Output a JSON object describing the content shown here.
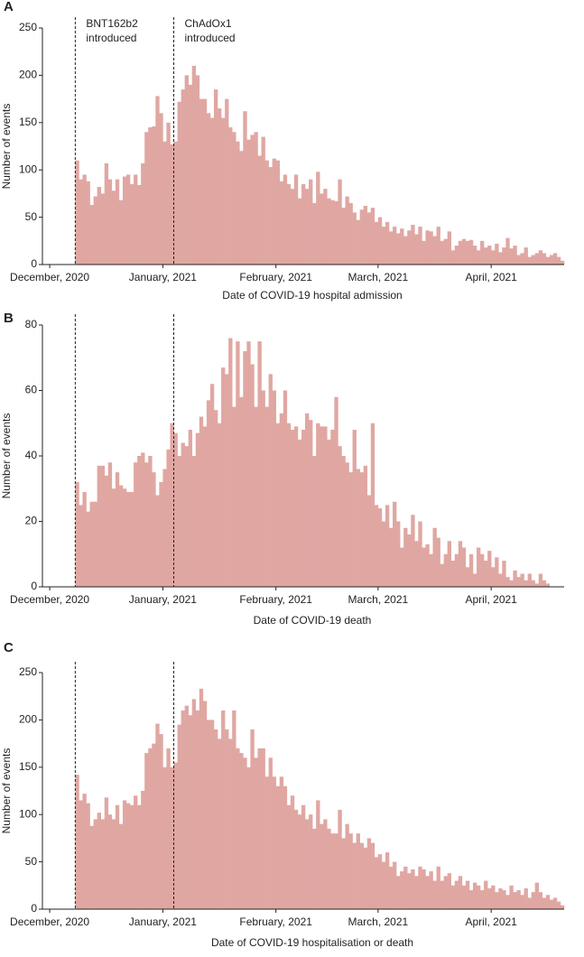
{
  "chart_data": [
    {
      "type": "histogram",
      "panel": "A",
      "xlabel": "Date of COVID-19 hospital admission",
      "ylabel": "Number of events",
      "color": "#e0a7a2",
      "xlim": [
        -2,
        141
      ],
      "xticks": [
        {
          "value": 0,
          "label": "December, 2020"
        },
        {
          "value": 31,
          "label": "January, 2021"
        },
        {
          "value": 62,
          "label": "February, 2021"
        },
        {
          "value": 90,
          "label": "March, 2021"
        },
        {
          "value": 121,
          "label": "April, 2021"
        }
      ],
      "ylim": [
        0,
        250
      ],
      "yticks": [
        0,
        50,
        100,
        150,
        200,
        250
      ],
      "vlines": [
        7,
        34
      ],
      "annotations": [
        [
          "BNT162b2",
          "introduced"
        ],
        [
          "ChAdOx1",
          "introduced"
        ]
      ],
      "x": [
        7,
        8,
        9,
        10,
        11,
        12,
        13,
        14,
        15,
        16,
        17,
        18,
        19,
        20,
        21,
        22,
        23,
        24,
        25,
        26,
        27,
        28,
        29,
        30,
        31,
        32,
        33,
        34,
        35,
        36,
        37,
        38,
        39,
        40,
        41,
        42,
        43,
        44,
        45,
        46,
        47,
        48,
        49,
        50,
        51,
        52,
        53,
        54,
        55,
        56,
        57,
        58,
        59,
        60,
        61,
        62,
        63,
        64,
        65,
        66,
        67,
        68,
        69,
        70,
        71,
        72,
        73,
        74,
        75,
        76,
        77,
        78,
        79,
        80,
        81,
        82,
        83,
        84,
        85,
        86,
        87,
        88,
        89,
        90,
        91,
        92,
        93,
        94,
        95,
        96,
        97,
        98,
        99,
        100,
        101,
        102,
        103,
        104,
        105,
        106,
        107,
        108,
        109,
        110,
        111,
        112,
        113,
        114,
        115,
        116,
        117,
        118,
        119,
        120,
        121,
        122,
        123,
        124,
        125,
        126,
        127,
        128,
        129,
        130,
        131,
        132,
        133,
        134,
        135,
        136,
        137,
        138,
        139,
        140
      ],
      "values": [
        110,
        90,
        95,
        88,
        63,
        72,
        82,
        75,
        107,
        90,
        78,
        90,
        68,
        93,
        95,
        85,
        95,
        84,
        107,
        140,
        145,
        146,
        178,
        160,
        130,
        150,
        127,
        130,
        172,
        185,
        200,
        190,
        210,
        200,
        175,
        175,
        160,
        155,
        185,
        165,
        155,
        175,
        145,
        140,
        130,
        120,
        162,
        132,
        137,
        140,
        115,
        135,
        110,
        103,
        112,
        110,
        88,
        95,
        85,
        80,
        95,
        70,
        85,
        80,
        90,
        65,
        98,
        75,
        80,
        70,
        68,
        67,
        90,
        60,
        72,
        65,
        55,
        47,
        58,
        62,
        55,
        60,
        45,
        50,
        40,
        45,
        35,
        40,
        33,
        38,
        30,
        36,
        42,
        32,
        40,
        25,
        36,
        35,
        30,
        40,
        25,
        27,
        35,
        15,
        20,
        25,
        27,
        25,
        26,
        20,
        15,
        25,
        18,
        20,
        15,
        22,
        13,
        18,
        28,
        17,
        20,
        10,
        12,
        18,
        8,
        10,
        12,
        15,
        12,
        8,
        10,
        12,
        8,
        4
      ]
    },
    {
      "type": "histogram",
      "panel": "B",
      "xlabel": "Date of COVID-19 death",
      "ylabel": "Number of events",
      "color": "#e0a7a2",
      "xlim": [
        -2,
        141
      ],
      "xticks": [
        {
          "value": 0,
          "label": "December, 2020"
        },
        {
          "value": 31,
          "label": "January, 2021"
        },
        {
          "value": 62,
          "label": "February, 2021"
        },
        {
          "value": 90,
          "label": "March, 2021"
        },
        {
          "value": 121,
          "label": "April, 2021"
        }
      ],
      "ylim": [
        0,
        80
      ],
      "yticks": [
        0,
        20,
        40,
        60,
        80
      ],
      "vlines": [
        7,
        34
      ],
      "x": [
        7,
        8,
        9,
        10,
        11,
        12,
        13,
        14,
        15,
        16,
        17,
        18,
        19,
        20,
        21,
        22,
        23,
        24,
        25,
        26,
        27,
        28,
        29,
        30,
        31,
        32,
        33,
        34,
        35,
        36,
        37,
        38,
        39,
        40,
        41,
        42,
        43,
        44,
        45,
        46,
        47,
        48,
        49,
        50,
        51,
        52,
        53,
        54,
        55,
        56,
        57,
        58,
        59,
        60,
        61,
        62,
        63,
        64,
        65,
        66,
        67,
        68,
        69,
        70,
        71,
        72,
        73,
        74,
        75,
        76,
        77,
        78,
        79,
        80,
        81,
        82,
        83,
        84,
        85,
        86,
        87,
        88,
        89,
        90,
        91,
        92,
        93,
        94,
        95,
        96,
        97,
        98,
        99,
        100,
        101,
        102,
        103,
        104,
        105,
        106,
        107,
        108,
        109,
        110,
        111,
        112,
        113,
        114,
        115,
        116,
        117,
        118,
        119,
        120,
        121,
        122,
        123,
        124,
        125,
        126,
        127,
        128,
        129,
        130,
        131,
        132,
        133,
        134,
        135,
        136
      ],
      "values": [
        32,
        25,
        29,
        23,
        26,
        26,
        37,
        37,
        34,
        38,
        30,
        35,
        31,
        30,
        29,
        29,
        38,
        40,
        41,
        38,
        40,
        35,
        28,
        32,
        36,
        42,
        50,
        47,
        40,
        44,
        43,
        48,
        40,
        47,
        52,
        49,
        57,
        62,
        54,
        50,
        67,
        65,
        76,
        55,
        75,
        58,
        72,
        75,
        68,
        55,
        75,
        60,
        55,
        65,
        60,
        50,
        53,
        60,
        50,
        48,
        49,
        45,
        48,
        53,
        51,
        40,
        50,
        49,
        49,
        45,
        48,
        58,
        43,
        40,
        38,
        35,
        48,
        36,
        35,
        37,
        28,
        50,
        25,
        24,
        20,
        25,
        18,
        26,
        20,
        12,
        18,
        16,
        22,
        14,
        20,
        12,
        13,
        10,
        18,
        15,
        7,
        10,
        14,
        8,
        10,
        14,
        12,
        6,
        10,
        4,
        12,
        10,
        8,
        11,
        6,
        9,
        4,
        8,
        3,
        2,
        5,
        3,
        4,
        2,
        4,
        2,
        1,
        4,
        2,
        1
      ]
    },
    {
      "type": "histogram",
      "panel": "C",
      "xlabel": "Date of COVID-19 hospitalisation or death",
      "ylabel": "Number of events",
      "color": "#e0a7a2",
      "xlim": [
        -2,
        141
      ],
      "xticks": [
        {
          "value": 0,
          "label": "December, 2020"
        },
        {
          "value": 31,
          "label": "January, 2021"
        },
        {
          "value": 62,
          "label": "February, 2021"
        },
        {
          "value": 90,
          "label": "March, 2021"
        },
        {
          "value": 121,
          "label": "April, 2021"
        }
      ],
      "ylim": [
        0,
        250
      ],
      "yticks": [
        0,
        50,
        100,
        150,
        200,
        250
      ],
      "vlines": [
        7,
        34
      ],
      "x": [
        7,
        8,
        9,
        10,
        11,
        12,
        13,
        14,
        15,
        16,
        17,
        18,
        19,
        20,
        21,
        22,
        23,
        24,
        25,
        26,
        27,
        28,
        29,
        30,
        31,
        32,
        33,
        34,
        35,
        36,
        37,
        38,
        39,
        40,
        41,
        42,
        43,
        44,
        45,
        46,
        47,
        48,
        49,
        50,
        51,
        52,
        53,
        54,
        55,
        56,
        57,
        58,
        59,
        60,
        61,
        62,
        63,
        64,
        65,
        66,
        67,
        68,
        69,
        70,
        71,
        72,
        73,
        74,
        75,
        76,
        77,
        78,
        79,
        80,
        81,
        82,
        83,
        84,
        85,
        86,
        87,
        88,
        89,
        90,
        91,
        92,
        93,
        94,
        95,
        96,
        97,
        98,
        99,
        100,
        101,
        102,
        103,
        104,
        105,
        106,
        107,
        108,
        109,
        110,
        111,
        112,
        113,
        114,
        115,
        116,
        117,
        118,
        119,
        120,
        121,
        122,
        123,
        124,
        125,
        126,
        127,
        128,
        129,
        130,
        131,
        132,
        133,
        134,
        135,
        136,
        137,
        138,
        139,
        140
      ],
      "values": [
        142,
        115,
        122,
        112,
        88,
        95,
        102,
        95,
        118,
        100,
        95,
        110,
        90,
        115,
        112,
        110,
        120,
        110,
        125,
        165,
        170,
        175,
        196,
        185,
        150,
        170,
        150,
        155,
        195,
        210,
        215,
        205,
        222,
        210,
        233,
        220,
        200,
        200,
        190,
        180,
        210,
        190,
        180,
        210,
        170,
        165,
        160,
        150,
        190,
        160,
        170,
        170,
        140,
        160,
        140,
        130,
        140,
        130,
        110,
        120,
        105,
        100,
        110,
        95,
        100,
        85,
        115,
        90,
        95,
        85,
        80,
        80,
        105,
        75,
        90,
        80,
        70,
        80,
        70,
        65,
        75,
        70,
        55,
        58,
        50,
        60,
        45,
        50,
        35,
        40,
        45,
        38,
        42,
        35,
        45,
        42,
        35,
        40,
        30,
        45,
        30,
        35,
        38,
        25,
        30,
        35,
        25,
        30,
        20,
        28,
        25,
        20,
        30,
        22,
        25,
        18,
        22,
        20,
        15,
        25,
        18,
        20,
        15,
        22,
        12,
        18,
        28,
        18,
        12,
        15,
        10,
        12,
        8,
        4
      ]
    }
  ]
}
